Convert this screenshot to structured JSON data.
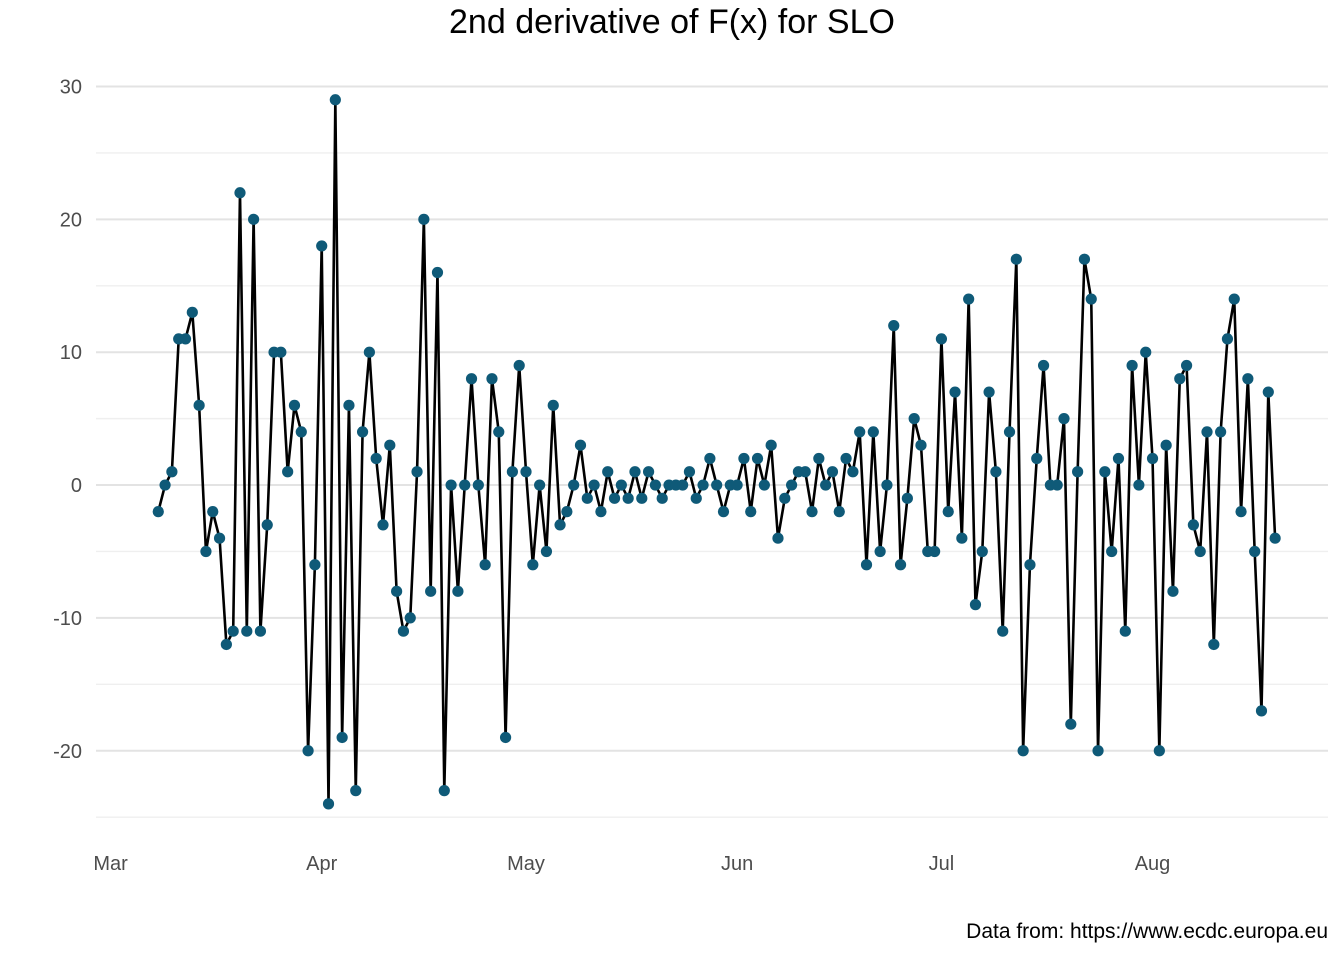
{
  "chart_data": {
    "type": "line",
    "title": "2nd derivative of F(x) for SLO",
    "xlabel": "",
    "ylabel": "",
    "caption": "Data from: https://www.ecdc.europa.eu",
    "x_start": "2020-03-08",
    "x_end": "2020-08-21",
    "xlim": [
      "2020-03-01",
      "2020-08-31"
    ],
    "ylim": [
      -25,
      30
    ],
    "y_ticks": [
      -20,
      -10,
      0,
      10,
      20,
      30
    ],
    "y_tick_labels": [
      "-20",
      "-10",
      "0",
      "10",
      "20",
      "30"
    ],
    "x_ticks": [
      "2020-03-01",
      "2020-04-01",
      "2020-05-01",
      "2020-06-01",
      "2020-07-01",
      "2020-08-01"
    ],
    "x_tick_labels": [
      "Mar",
      "Apr",
      "May",
      "Jun",
      "Jul",
      "Aug"
    ],
    "grid": true,
    "line_color": "#000000",
    "point_color": "#0f5a78",
    "values": [
      -2,
      0,
      1,
      11,
      11,
      13,
      6,
      -5,
      -2,
      -4,
      -12,
      -11,
      22,
      -11,
      20,
      -11,
      -3,
      10,
      10,
      1,
      6,
      4,
      -20,
      -6,
      18,
      -24,
      29,
      -19,
      6,
      -23,
      4,
      10,
      2,
      -3,
      3,
      -8,
      -11,
      -10,
      1,
      20,
      -8,
      16,
      -23,
      0,
      -8,
      0,
      8,
      0,
      -6,
      8,
      4,
      -19,
      1,
      9,
      1,
      -6,
      0,
      -5,
      6,
      -3,
      -2,
      0,
      3,
      -1,
      0,
      -2,
      1,
      -1,
      0,
      -1,
      1,
      -1,
      1,
      0,
      -1,
      0,
      0,
      0,
      1,
      -1,
      0,
      2,
      0,
      -2,
      0,
      0,
      2,
      -2,
      2,
      0,
      3,
      -4,
      -1,
      0,
      1,
      1,
      -2,
      2,
      0,
      1,
      -2,
      2,
      1,
      4,
      -6,
      4,
      -5,
      0,
      12,
      -6,
      -1,
      5,
      3,
      -5,
      -5,
      11,
      -2,
      7,
      -4,
      14,
      -9,
      -5,
      7,
      1,
      -11,
      4,
      17,
      -20,
      -6,
      2,
      9,
      0,
      0,
      5,
      -18,
      1,
      17,
      14,
      -20,
      1,
      -5,
      2,
      -11,
      9,
      0,
      10,
      2,
      -20,
      3,
      -8,
      8,
      9,
      -3,
      -5,
      4,
      -12,
      4,
      11,
      14,
      -2,
      8,
      -5,
      -17,
      7,
      -4
    ]
  }
}
